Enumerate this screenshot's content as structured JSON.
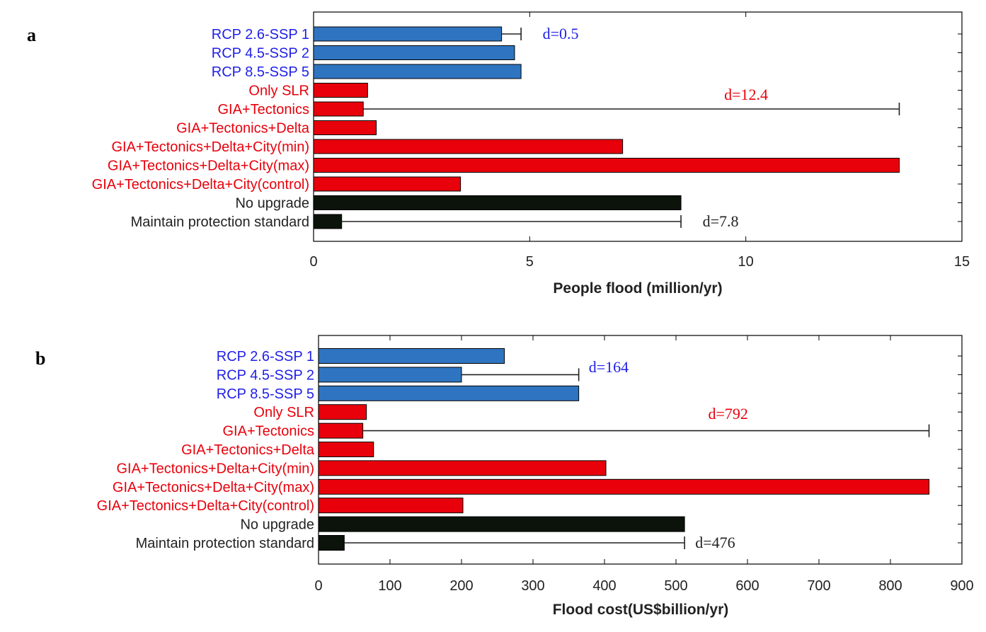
{
  "colors": {
    "scenario_blue": "#2f74c0",
    "scenario_blue_text": "#1f1fe8",
    "process_red": "#e8000b",
    "process_red_text": "#e8000b",
    "policy_black": "#0b130b",
    "policy_black_text": "#222222"
  },
  "chart_data": [
    {
      "panel_label": "a",
      "type": "bar",
      "orientation": "horizontal",
      "xlabel": "People flood (million/yr)",
      "xlim": [
        0,
        15
      ],
      "xticks": [
        0,
        5,
        10,
        15
      ],
      "categories": [
        {
          "label": "RCP 2.6-SSP 1",
          "group": "blue",
          "value": 4.35
        },
        {
          "label": "RCP 4.5-SSP 2",
          "group": "blue",
          "value": 4.65
        },
        {
          "label": "RCP 8.5-SSP 5",
          "group": "blue",
          "value": 4.8
        },
        {
          "label": "Only SLR",
          "group": "red",
          "value": 1.25
        },
        {
          "label": "GIA+Tectonics",
          "group": "red",
          "value": 1.15
        },
        {
          "label": "GIA+Tectonics+Delta",
          "group": "red",
          "value": 1.45
        },
        {
          "label": "GIA+Tectonics+Delta+City(min)",
          "group": "red",
          "value": 7.15
        },
        {
          "label": "GIA+Tectonics+Delta+City(max)",
          "group": "red",
          "value": 13.55
        },
        {
          "label": "GIA+Tectonics+Delta+City(control)",
          "group": "red",
          "value": 3.4
        },
        {
          "label": "No upgrade",
          "group": "black",
          "value": 8.5
        },
        {
          "label": "Maintain protection standard",
          "group": "black",
          "value": 0.65
        }
      ],
      "ranges": [
        {
          "row": 0,
          "from": 4.35,
          "to": 4.8,
          "label": "d=0.5",
          "label_x": 5.3,
          "group": "blue"
        },
        {
          "row": 4,
          "from": 1.15,
          "to": 13.55,
          "label": "d=12.4",
          "label_x": 9.5,
          "label_row": 3.25,
          "group": "red"
        },
        {
          "row": 10,
          "from": 0.65,
          "to": 8.5,
          "label": "d=7.8",
          "label_x": 9.0,
          "group": "black"
        }
      ]
    },
    {
      "panel_label": "b",
      "type": "bar",
      "orientation": "horizontal",
      "xlabel": "Flood cost(US$billion/yr)",
      "xlim": [
        0,
        900
      ],
      "xticks": [
        0,
        100,
        200,
        300,
        400,
        500,
        600,
        700,
        800,
        900
      ],
      "categories": [
        {
          "label": "RCP 2.6-SSP 1",
          "group": "blue",
          "value": 260
        },
        {
          "label": "RCP 4.5-SSP 2",
          "group": "blue",
          "value": 200
        },
        {
          "label": "RCP 8.5-SSP 5",
          "group": "blue",
          "value": 364
        },
        {
          "label": "Only SLR",
          "group": "red",
          "value": 67
        },
        {
          "label": "GIA+Tectonics",
          "group": "red",
          "value": 62
        },
        {
          "label": "GIA+Tectonics+Delta",
          "group": "red",
          "value": 77
        },
        {
          "label": "GIA+Tectonics+Delta+City(min)",
          "group": "red",
          "value": 402
        },
        {
          "label": "GIA+Tectonics+Delta+City(max)",
          "group": "red",
          "value": 854
        },
        {
          "label": "GIA+Tectonics+Delta+City(control)",
          "group": "red",
          "value": 202
        },
        {
          "label": "No upgrade",
          "group": "black",
          "value": 512
        },
        {
          "label": "Maintain protection standard",
          "group": "black",
          "value": 36
        }
      ],
      "ranges": [
        {
          "row": 1,
          "from": 200,
          "to": 364,
          "label": "d=164",
          "label_x": 378,
          "label_row": 0.6,
          "group": "blue"
        },
        {
          "row": 4,
          "from": 62,
          "to": 854,
          "label": "d=792",
          "label_x": 545,
          "label_row": 3.1,
          "group": "red"
        },
        {
          "row": 10,
          "from": 36,
          "to": 512,
          "label": "d=476",
          "label_x": 527,
          "group": "black"
        }
      ]
    }
  ]
}
